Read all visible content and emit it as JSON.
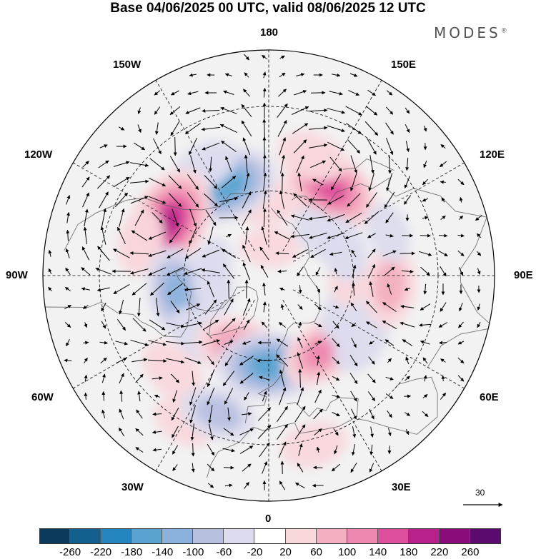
{
  "title": "Base 04/06/2025 00 UTC, valid 08/06/2025 12 UTC",
  "logo": "MODES",
  "logo_mark": "®",
  "longitude_labels": {
    "lon_180": "180",
    "lon_150w": "150W",
    "lon_150e": "150E",
    "lon_120w": "120W",
    "lon_120e": "120E",
    "lon_90w": "90W",
    "lon_90e": "90E",
    "lon_60w": "60W",
    "lon_60e": "60E",
    "lon_30w": "30W",
    "lon_30e": "30E",
    "lon_0": "0"
  },
  "reference_vector": {
    "label": "30"
  },
  "colorbar": {
    "ticks": [
      "-260",
      "-220",
      "-180",
      "-140",
      "-100",
      "-60",
      "-20",
      "20",
      "60",
      "100",
      "140",
      "180",
      "220",
      "260"
    ],
    "colors": [
      "#0b3a5c",
      "#13608f",
      "#2585c0",
      "#5aa3d1",
      "#8bb2dc",
      "#b8c0e0",
      "#dcdcee",
      "#ffffff",
      "#f9d8dc",
      "#f4b0c0",
      "#ee88b0",
      "#dd4f9c",
      "#b8208a",
      "#8a0c7a",
      "#5b0a6e"
    ]
  },
  "anomaly_centers": [
    {
      "lon": 145,
      "lat": 52,
      "value": 170
    },
    {
      "lon": -178,
      "lat": 64,
      "value": 70
    },
    {
      "lon": 160,
      "lat": 45,
      "value": 70
    },
    {
      "lon": -155,
      "lat": 55,
      "value": -170
    },
    {
      "lon": -150,
      "lat": 45,
      "value": -60
    },
    {
      "lon": -118,
      "lat": 50,
      "value": 200
    },
    {
      "lon": -105,
      "lat": 43,
      "value": 60
    },
    {
      "lon": -80,
      "lat": 57,
      "value": -130
    },
    {
      "lon": -80,
      "lat": 70,
      "value": -40
    },
    {
      "lon": -50,
      "lat": 57,
      "value": -50
    },
    {
      "lon": -20,
      "lat": 62,
      "value": 140
    },
    {
      "lon": -45,
      "lat": 42,
      "value": 70
    },
    {
      "lon": -30,
      "lat": 30,
      "value": 50
    },
    {
      "lon": 0,
      "lat": 58,
      "value": -170
    },
    {
      "lon": -20,
      "lat": 38,
      "value": -90
    },
    {
      "lon": 15,
      "lat": 28,
      "value": 60
    },
    {
      "lon": 35,
      "lat": 57,
      "value": 120
    },
    {
      "lon": 55,
      "lat": 50,
      "value": -70
    },
    {
      "lon": 65,
      "lat": 60,
      "value": -60
    },
    {
      "lon": 85,
      "lat": 47,
      "value": 100
    },
    {
      "lon": 90,
      "lat": 62,
      "value": 40
    },
    {
      "lon": 110,
      "lat": 62,
      "value": -60
    },
    {
      "lon": 130,
      "lat": 67,
      "value": -40
    },
    {
      "lon": 110,
      "lat": 45,
      "value": -40
    },
    {
      "lon": 178,
      "lat": 80,
      "value": 40
    },
    {
      "lon": -100,
      "lat": 70,
      "value": -30
    }
  ]
}
